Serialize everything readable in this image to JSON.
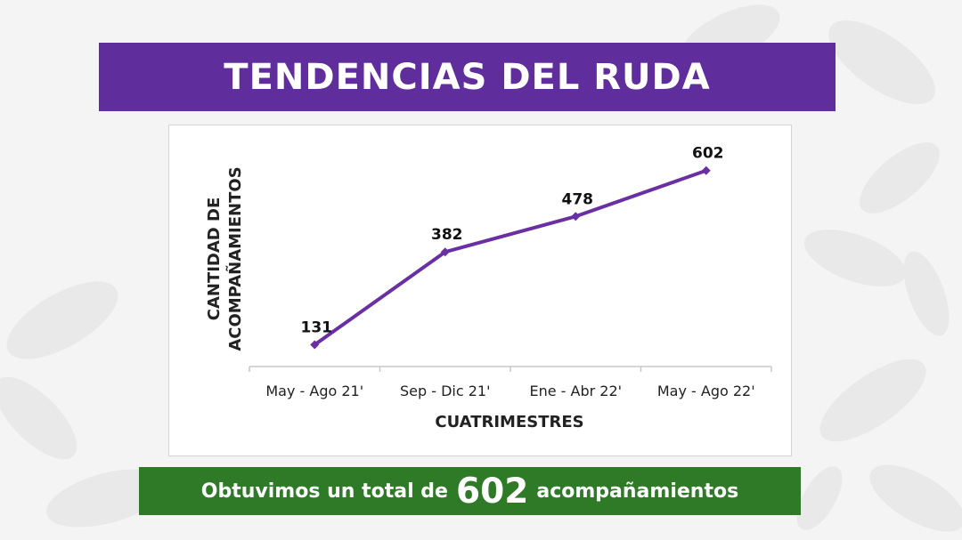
{
  "title": "TENDENCIAS DEL RUDA",
  "summary": {
    "prefix": "Obtuvimos un total de",
    "highlight": "602",
    "suffix": "acompañamientos"
  },
  "colors": {
    "title_bg": "#5f2d9c",
    "line": "#6a2fa3",
    "summary_bg": "#2f7a27"
  },
  "chart_data": {
    "type": "line",
    "categories": [
      "May - Ago 21'",
      "Sep - Dic 21'",
      "Ene - Abr 22'",
      "May - Ago 22'"
    ],
    "values": [
      131,
      382,
      478,
      602
    ],
    "data_labels": [
      "131",
      "382",
      "478",
      "602"
    ],
    "xlabel": "CUATRIMESTRES",
    "ylabel_lines": [
      "CANTIDAD DE",
      "ACOMPAÑAMIENTOS"
    ],
    "grid": false,
    "y_axis_visible": false
  }
}
